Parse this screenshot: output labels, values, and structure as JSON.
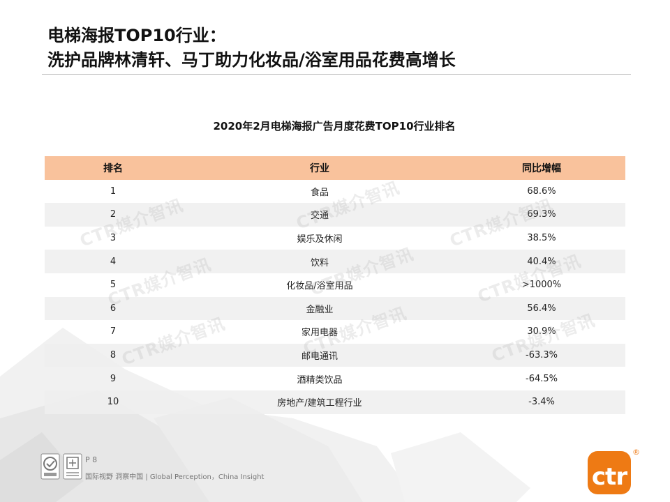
{
  "slide": {
    "title_line1": "电梯海报TOP10行业：",
    "title_line2": "洗护品牌林清轩、马丁助力化妆品/浴室用品花费高增长"
  },
  "table": {
    "title": "2020年2月电梯海报广告月度花费TOP10行业排名",
    "headers": [
      "排名",
      "行业",
      "同比增幅"
    ],
    "rows": [
      [
        "1",
        "食品",
        "68.6%"
      ],
      [
        "2",
        "交通",
        "69.3%"
      ],
      [
        "3",
        "娱乐及休闲",
        "38.5%"
      ],
      [
        "4",
        "饮料",
        "40.4%"
      ],
      [
        "5",
        "化妆品/浴室用品",
        ">1000%"
      ],
      [
        "6",
        "金融业",
        "56.4%"
      ],
      [
        "7",
        "家用电器",
        "30.9%"
      ],
      [
        "8",
        "邮电通讯",
        "-63.3%"
      ],
      [
        "9",
        "酒精类饮品",
        "-64.5%"
      ],
      [
        "10",
        "房地产/建筑工程行业",
        "-3.4%"
      ]
    ]
  },
  "watermark": {
    "text": "CTR媒介智讯"
  },
  "footer": {
    "page_number": "P 8",
    "slogan": "国际视野 洞察中国 | Global Perception，China Insight",
    "logo_text": "ctr",
    "registered_mark": "®"
  },
  "colors": {
    "header_row": "#f9c29c",
    "alt_row": "#eeeeee",
    "brand_orange": "#ee7a14"
  }
}
